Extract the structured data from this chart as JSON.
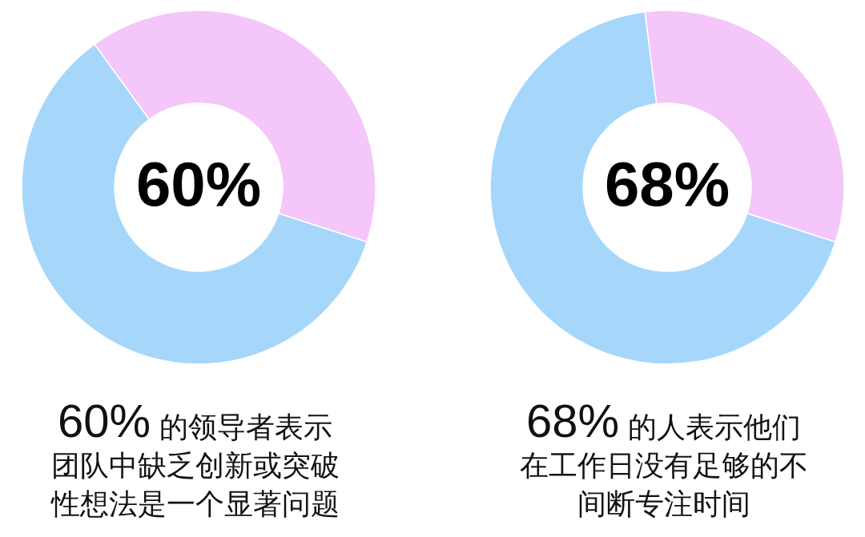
{
  "chart_data": [
    {
      "type": "donut",
      "categories": [
        null,
        null
      ],
      "values": [
        60,
        40
      ],
      "colors": [
        "#a6d7fb",
        "#f4c6f9"
      ],
      "annotations": [
        "60%",
        "60%",
        "的领导者表示团队中缺乏创新或突破性想法是一个显著问题"
      ]
    },
    {
      "type": "donut",
      "categories": [
        null,
        null
      ],
      "values": [
        68,
        32
      ],
      "colors": [
        "#a6d7fb",
        "#f4c6f9"
      ],
      "annotations": [
        "68%",
        "68%",
        "的人表示他们在工作日没有足够的不间断专注时间"
      ]
    }
  ]
}
